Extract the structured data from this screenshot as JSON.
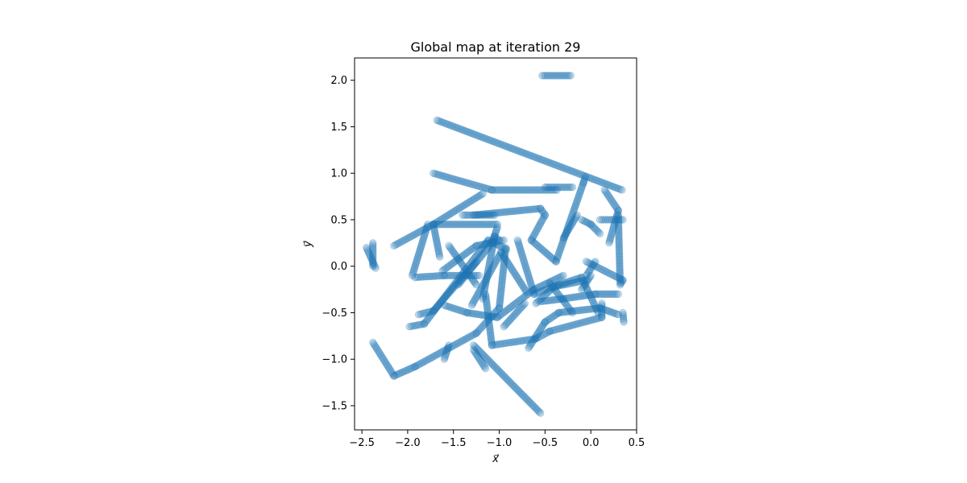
{
  "chart_data": {
    "type": "scatter",
    "title": "Global map at iteration 29",
    "xlabel": "x⃗",
    "ylabel": "y⃗",
    "xlim": [
      -2.58,
      0.5
    ],
    "ylim": [
      -1.76,
      2.24
    ],
    "xticks": [
      -2.5,
      -2.0,
      -1.5,
      -1.0,
      -0.5,
      0.0,
      0.5
    ],
    "yticks": [
      -1.5,
      -1.0,
      -0.5,
      0.0,
      0.5,
      1.0,
      1.5,
      2.0
    ],
    "xtick_labels": [
      "−2.5",
      "−2.0",
      "−1.5",
      "−1.0",
      "−0.5",
      "0.0",
      "0.5"
    ],
    "ytick_labels": [
      "−1.5",
      "−1.0",
      "−0.5",
      "0.0",
      "0.5",
      "1.0",
      "1.5",
      "2.0"
    ],
    "grid": false,
    "marker_color": "#1f77b4",
    "marker_alpha": 0.22,
    "segments": [
      [
        [
          -0.53,
          2.05
        ],
        [
          -0.22,
          2.05
        ]
      ],
      [
        [
          -1.68,
          1.57
        ],
        [
          0.34,
          0.82
        ]
      ],
      [
        [
          -1.72,
          1.0
        ],
        [
          -1.08,
          0.82
        ],
        [
          -0.37,
          0.82
        ]
      ],
      [
        [
          -0.5,
          0.85
        ],
        [
          -0.2,
          0.85
        ]
      ],
      [
        [
          -2.38,
          0.25
        ],
        [
          -2.38,
          0.0
        ]
      ],
      [
        [
          -2.15,
          0.22
        ],
        [
          -1.72,
          0.45
        ],
        [
          -1.02,
          0.45
        ]
      ],
      [
        [
          -1.4,
          0.55
        ],
        [
          -1.05,
          0.55
        ]
      ],
      [
        [
          -1.95,
          -0.1
        ],
        [
          -1.78,
          0.45
        ]
      ],
      [
        [
          -1.28,
          0.55
        ],
        [
          -0.55,
          0.62
        ],
        [
          -0.5,
          0.55
        ],
        [
          -0.65,
          0.28
        ],
        [
          -0.38,
          0.05
        ],
        [
          -0.08,
          0.9
        ],
        [
          -0.06,
          0.96
        ]
      ],
      [
        [
          -0.3,
          0.3
        ],
        [
          -0.15,
          0.55
        ]
      ],
      [
        [
          -1.18,
          0.78
        ],
        [
          -1.72,
          0.45
        ],
        [
          -1.65,
          0.1
        ]
      ],
      [
        [
          -1.98,
          -0.65
        ],
        [
          -1.82,
          -0.62
        ],
        [
          -1.12,
          0.28
        ],
        [
          -0.92,
          0.18
        ]
      ],
      [
        [
          -1.62,
          -0.05
        ],
        [
          -1.25,
          0.22
        ],
        [
          -0.95,
          0.28
        ]
      ],
      [
        [
          -1.88,
          -0.52
        ],
        [
          -1.72,
          -0.48
        ],
        [
          -1.25,
          0.05
        ]
      ],
      [
        [
          -1.92,
          -0.12
        ],
        [
          -1.6,
          -0.1
        ],
        [
          -1.22,
          -0.1
        ]
      ],
      [
        [
          -2.38,
          -0.82
        ],
        [
          -2.15,
          -1.18
        ],
        [
          -1.92,
          -1.08
        ],
        [
          -1.25,
          -0.72
        ],
        [
          -1.0,
          -0.45
        ],
        [
          -0.93,
          0.2
        ]
      ],
      [
        [
          -1.55,
          0.22
        ],
        [
          -1.25,
          -0.2
        ]
      ],
      [
        [
          -1.45,
          -0.2
        ],
        [
          -1.08,
          0.25
        ],
        [
          -1.02,
          0.42
        ]
      ],
      [
        [
          -1.18,
          -0.35
        ],
        [
          -1.05,
          0.32
        ],
        [
          -1.0,
          0.28
        ]
      ],
      [
        [
          -1.3,
          -0.42
        ],
        [
          -0.98,
          0.15
        ],
        [
          -0.7,
          -0.28
        ]
      ],
      [
        [
          -1.6,
          -0.42
        ],
        [
          -1.35,
          -0.5
        ],
        [
          -1.02,
          -0.55
        ],
        [
          -0.62,
          -0.25
        ],
        [
          -0.3,
          -0.1
        ]
      ],
      [
        [
          -0.8,
          0.28
        ],
        [
          -0.62,
          -0.3
        ],
        [
          -0.35,
          -0.2
        ],
        [
          -0.1,
          -0.12
        ],
        [
          0.08,
          -0.5
        ]
      ],
      [
        [
          -0.95,
          -0.65
        ],
        [
          -0.72,
          -0.4
        ]
      ],
      [
        [
          -1.15,
          -0.3
        ],
        [
          -1.08,
          -0.85
        ],
        [
          -0.6,
          -0.78
        ],
        [
          -0.45,
          -0.7
        ],
        [
          0.12,
          -0.55
        ],
        [
          0.12,
          -0.4
        ]
      ],
      [
        [
          -0.68,
          -0.88
        ],
        [
          -0.5,
          -0.6
        ],
        [
          -0.35,
          -0.5
        ],
        [
          0.1,
          -0.45
        ],
        [
          0.3,
          -0.52
        ]
      ],
      [
        [
          -0.55,
          -0.38
        ],
        [
          -0.3,
          -0.35
        ],
        [
          0.05,
          -0.3
        ],
        [
          0.3,
          -0.3
        ]
      ],
      [
        [
          -0.6,
          -0.4
        ],
        [
          -0.4,
          -0.22
        ],
        [
          -0.05,
          -0.15
        ]
      ],
      [
        [
          -0.45,
          -0.18
        ],
        [
          -0.2,
          -0.5
        ]
      ],
      [
        [
          -0.1,
          -0.25
        ],
        [
          0.0,
          -0.1
        ]
      ],
      [
        [
          -0.05,
          0.05
        ],
        [
          0.35,
          -0.15
        ],
        [
          0.32,
          -0.2
        ]
      ],
      [
        [
          -0.05,
          -0.1
        ],
        [
          0.05,
          0.05
        ]
      ],
      [
        [
          0.1,
          0.5
        ],
        [
          0.35,
          0.5
        ]
      ],
      [
        [
          0.3,
          0.55
        ],
        [
          0.32,
          -0.18
        ]
      ],
      [
        [
          0.2,
          0.25
        ],
        [
          0.3,
          0.6
        ]
      ],
      [
        [
          -0.1,
          0.5
        ],
        [
          0.0,
          0.45
        ],
        [
          0.1,
          0.35
        ]
      ],
      [
        [
          0.15,
          0.82
        ],
        [
          0.3,
          0.6
        ]
      ],
      [
        [
          -1.28,
          -0.85
        ],
        [
          -0.55,
          -1.58
        ]
      ],
      [
        [
          -1.28,
          -0.9
        ],
        [
          -1.15,
          -1.1
        ]
      ],
      [
        [
          -1.6,
          -1.0
        ],
        [
          -1.55,
          -0.85
        ]
      ],
      [
        [
          -2.45,
          0.2
        ],
        [
          -2.35,
          -0.02
        ]
      ],
      [
        [
          0.35,
          -0.5
        ],
        [
          0.36,
          -0.6
        ]
      ]
    ]
  }
}
